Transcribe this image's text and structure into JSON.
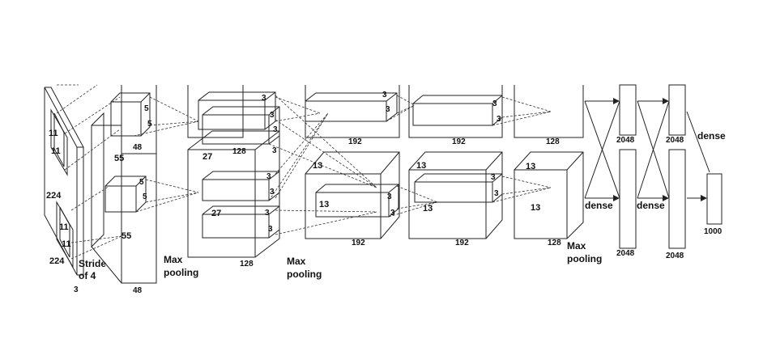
{
  "labels": {
    "input_height": "224",
    "input_width": "224",
    "input_depth": "3",
    "kernel_11_top_a": "11",
    "kernel_11_top_b": "11",
    "kernel_11_bot_a": "11",
    "kernel_11_bot_b": "11",
    "stride_line1": "Stride",
    "stride_line2": "of 4",
    "conv1_size_top": "55",
    "conv1_size_bot": "55",
    "conv1_depth_top": "48",
    "conv1_depth_bot": "48",
    "k5_top_a": "5",
    "k5_top_b": "5",
    "k5_bot_a": "5",
    "k5_bot_b": "5",
    "maxpool1_line1": "Max",
    "maxpool1_line2": "pooling",
    "conv2_size_top": "27",
    "conv2_size_bot": "27",
    "conv2_depth_top": "128",
    "conv2_depth_bot": "128",
    "k3_c2_1": "3",
    "k3_c2_2": "3",
    "k3_c2_3": "3",
    "k3_c2_4": "3",
    "k3_c2_5": "3",
    "k3_c2_6": "3",
    "k3_c2_7": "3",
    "k3_c2_8": "3",
    "maxpool2_line1": "Max",
    "maxpool2_line2": "pooling",
    "conv3_depth_top": "192",
    "conv3_depth_bot": "192",
    "conv3_size": "13",
    "conv3_size_b": "13",
    "k3_c3_1": "3",
    "k3_c3_2": "3",
    "k3_c3_3": "3",
    "k3_c3_4": "3",
    "conv4_depth_top": "192",
    "conv4_depth_bot": "192",
    "conv4_size": "13",
    "conv4_size_b": "13",
    "k3_c4_1": "3",
    "k3_c4_2": "3",
    "k3_c4_3": "3",
    "k3_c4_4": "3",
    "conv5_depth_top": "128",
    "conv5_depth_bot": "128",
    "conv5_size_a": "13",
    "conv5_size_b": "13",
    "maxpool3_line1": "Max",
    "maxpool3_line2": "pooling",
    "fc_dense_1": "dense",
    "fc_dense_2": "dense",
    "fc_dense_3": "dense",
    "fc1_top": "2048",
    "fc1_bot": "2048",
    "fc2_top": "2048",
    "fc2_bot": "2048",
    "output_size": "1000"
  }
}
